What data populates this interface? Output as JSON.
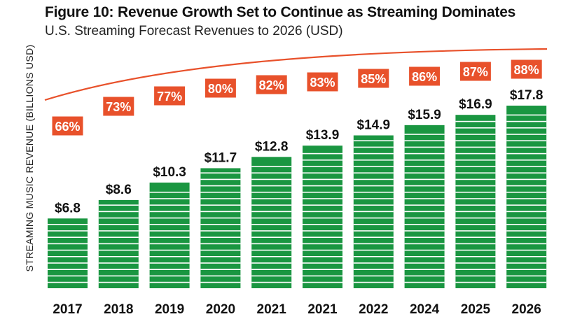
{
  "chart_data": {
    "type": "bar",
    "title": "Figure 10: Revenue Growth Set to Continue as Streaming Dominates",
    "subtitle": "U.S. Streaming Forecast Revenues to 2026 (USD)",
    "ylabel": "STREAMING MUSIC REVENUE (BILLIONS USD)",
    "xlabel": "",
    "categories": [
      "2017",
      "2018",
      "2019",
      "2020",
      "2021",
      "2021",
      "2022",
      "2024",
      "2025",
      "2026"
    ],
    "series": [
      {
        "values": [
          6.8,
          8.6,
          10.3,
          11.7,
          12.8,
          13.9,
          14.9,
          15.9,
          16.9,
          17.8
        ],
        "value_labels": [
          "$6.8",
          "$8.6",
          "$10.3",
          "$11.7",
          "$12.8",
          "$13.9",
          "$14.9",
          "$15.9",
          "$16.9",
          "$17.8"
        ],
        "color": "#1a9641"
      }
    ],
    "share_labels": [
      "66%",
      "73%",
      "77%",
      "80%",
      "82%",
      "83%",
      "85%",
      "86%",
      "87%",
      "88%"
    ],
    "share_values": [
      66,
      73,
      77,
      80,
      82,
      83,
      85,
      86,
      87,
      88
    ],
    "share_color": "#e8512b",
    "trend_line_color": "#e8512b",
    "ylim": [
      0,
      20
    ],
    "grid": false,
    "legend": "none"
  }
}
